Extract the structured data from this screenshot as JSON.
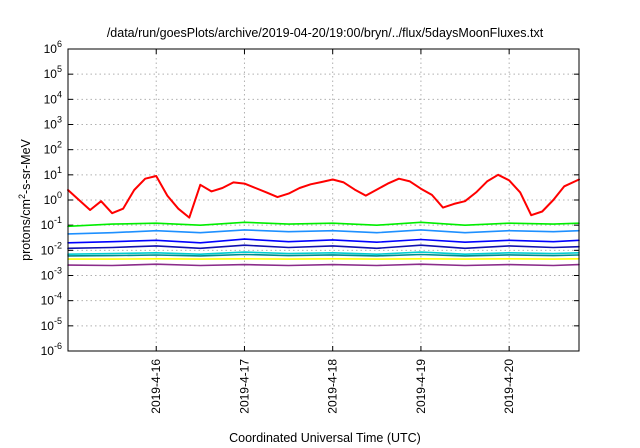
{
  "chart_data": {
    "type": "line",
    "title": "/data/run/goesPlots/archive/2019-04-20/19:00/bryn/../flux/5daysMoonFluxes.txt",
    "xlabel": "Coordinated Universal Time (UTC)",
    "ylabel": "protons/cm²-s-sr-MeV",
    "ylabel_parts": {
      "pre": "protons/cm",
      "sup": "2",
      "post": "-s-sr-MeV"
    },
    "y_scale": "log",
    "ylim": [
      1e-06,
      1000000.0
    ],
    "xlim": [
      "2019-04-15 00:00",
      "2019-04-20 19:00"
    ],
    "grid": true,
    "x_ticks": [
      {
        "x": "2019-04-16 00:00",
        "label": "2019-4-16"
      },
      {
        "x": "2019-04-17 00:00",
        "label": "2019-4-17"
      },
      {
        "x": "2019-04-18 00:00",
        "label": "2019-4-18"
      },
      {
        "x": "2019-04-19 00:00",
        "label": "2019-4-19"
      },
      {
        "x": "2019-04-20 00:00",
        "label": "2019-4-20"
      }
    ],
    "y_ticks": [
      {
        "value": 1e-06,
        "base": "10",
        "exp": "-6"
      },
      {
        "value": 1e-05,
        "base": "10",
        "exp": "-5"
      },
      {
        "value": 0.0001,
        "base": "10",
        "exp": "-4"
      },
      {
        "value": 0.001,
        "base": "10",
        "exp": "-3"
      },
      {
        "value": 0.01,
        "base": "10",
        "exp": "-2"
      },
      {
        "value": 0.1,
        "base": "10",
        "exp": "-1"
      },
      {
        "value": 1,
        "base": "10",
        "exp": "0"
      },
      {
        "value": 10,
        "base": "10",
        "exp": "1"
      },
      {
        "value": 100,
        "base": "10",
        "exp": "2"
      },
      {
        "value": 1000,
        "base": "10",
        "exp": "3"
      },
      {
        "value": 10000,
        "base": "10",
        "exp": "4"
      },
      {
        "value": 100000,
        "base": "10",
        "exp": "5"
      },
      {
        "value": 1000000,
        "base": "10",
        "exp": "6"
      }
    ],
    "series": [
      {
        "color": "#ff0000",
        "x": [
          "2019-04-15 00:00",
          "2019-04-15 03:00",
          "2019-04-15 06:00",
          "2019-04-15 09:00",
          "2019-04-15 12:00",
          "2019-04-15 15:00",
          "2019-04-15 18:00",
          "2019-04-15 21:00",
          "2019-04-16 00:00",
          "2019-04-16 03:00",
          "2019-04-16 06:00",
          "2019-04-16 09:00",
          "2019-04-16 12:00",
          "2019-04-16 15:00",
          "2019-04-16 18:00",
          "2019-04-16 21:00",
          "2019-04-17 00:00",
          "2019-04-17 03:00",
          "2019-04-17 06:00",
          "2019-04-17 09:00",
          "2019-04-17 12:00",
          "2019-04-17 15:00",
          "2019-04-17 18:00",
          "2019-04-17 21:00",
          "2019-04-18 00:00",
          "2019-04-18 03:00",
          "2019-04-18 06:00",
          "2019-04-18 09:00",
          "2019-04-18 12:00",
          "2019-04-18 15:00",
          "2019-04-18 18:00",
          "2019-04-18 21:00",
          "2019-04-19 00:00",
          "2019-04-19 03:00",
          "2019-04-19 06:00",
          "2019-04-19 09:00",
          "2019-04-19 12:00",
          "2019-04-19 15:00",
          "2019-04-19 18:00",
          "2019-04-19 21:00",
          "2019-04-20 00:00",
          "2019-04-20 03:00",
          "2019-04-20 06:00",
          "2019-04-20 09:00",
          "2019-04-20 12:00",
          "2019-04-20 15:00",
          "2019-04-20 19:00"
        ],
        "values": [
          2.5,
          1.0,
          0.4,
          0.9,
          0.3,
          0.45,
          2.5,
          7,
          9,
          1.5,
          0.45,
          0.2,
          4,
          2.2,
          3,
          5,
          4.5,
          3,
          2,
          1.3,
          1.8,
          3,
          4.2,
          5.2,
          6.5,
          5,
          2.6,
          1.5,
          2.6,
          4.5,
          7,
          5.5,
          2.8,
          1.6,
          0.5,
          0.7,
          0.9,
          2,
          5.5,
          10,
          6,
          2,
          0.25,
          0.35,
          1,
          3.5,
          6.5
        ]
      },
      {
        "color": "#00ee00",
        "x": [
          "2019-04-15 00:00",
          "2019-04-15 12:00",
          "2019-04-16 00:00",
          "2019-04-16 12:00",
          "2019-04-17 00:00",
          "2019-04-17 12:00",
          "2019-04-18 00:00",
          "2019-04-18 12:00",
          "2019-04-19 00:00",
          "2019-04-19 12:00",
          "2019-04-20 00:00",
          "2019-04-20 12:00",
          "2019-04-20 19:00"
        ],
        "values": [
          0.09,
          0.11,
          0.12,
          0.1,
          0.13,
          0.11,
          0.12,
          0.1,
          0.13,
          0.1,
          0.12,
          0.11,
          0.12
        ]
      },
      {
        "color": "#1e90ff",
        "x": [
          "2019-04-15 00:00",
          "2019-04-15 12:00",
          "2019-04-16 00:00",
          "2019-04-16 12:00",
          "2019-04-17 00:00",
          "2019-04-17 12:00",
          "2019-04-18 00:00",
          "2019-04-18 12:00",
          "2019-04-19 00:00",
          "2019-04-19 12:00",
          "2019-04-20 00:00",
          "2019-04-20 12:00",
          "2019-04-20 19:00"
        ],
        "values": [
          0.045,
          0.05,
          0.06,
          0.05,
          0.065,
          0.055,
          0.06,
          0.05,
          0.065,
          0.05,
          0.06,
          0.055,
          0.06
        ]
      },
      {
        "color": "#0000ff",
        "x": [
          "2019-04-15 00:00",
          "2019-04-15 12:00",
          "2019-04-16 00:00",
          "2019-04-16 12:00",
          "2019-04-17 00:00",
          "2019-04-17 12:00",
          "2019-04-18 00:00",
          "2019-04-18 12:00",
          "2019-04-19 00:00",
          "2019-04-19 12:00",
          "2019-04-20 00:00",
          "2019-04-20 12:00",
          "2019-04-20 19:00"
        ],
        "values": [
          0.02,
          0.022,
          0.025,
          0.02,
          0.028,
          0.022,
          0.026,
          0.021,
          0.027,
          0.021,
          0.025,
          0.022,
          0.025
        ]
      },
      {
        "color": "#1010b0",
        "x": [
          "2019-04-15 00:00",
          "2019-04-15 12:00",
          "2019-04-16 00:00",
          "2019-04-16 12:00",
          "2019-04-17 00:00",
          "2019-04-17 12:00",
          "2019-04-18 00:00",
          "2019-04-18 12:00",
          "2019-04-19 00:00",
          "2019-04-19 12:00",
          "2019-04-20 00:00",
          "2019-04-20 12:00",
          "2019-04-20 19:00"
        ],
        "values": [
          0.012,
          0.013,
          0.015,
          0.012,
          0.016,
          0.013,
          0.015,
          0.012,
          0.016,
          0.012,
          0.015,
          0.013,
          0.014
        ]
      },
      {
        "color": "#00ced1",
        "x": [
          "2019-04-15 00:00",
          "2019-04-15 12:00",
          "2019-04-16 00:00",
          "2019-04-16 12:00",
          "2019-04-17 00:00",
          "2019-04-17 12:00",
          "2019-04-18 00:00",
          "2019-04-18 12:00",
          "2019-04-19 00:00",
          "2019-04-19 12:00",
          "2019-04-20 00:00",
          "2019-04-20 12:00",
          "2019-04-20 19:00"
        ],
        "values": [
          0.007,
          0.0075,
          0.008,
          0.007,
          0.0085,
          0.0075,
          0.008,
          0.007,
          0.0085,
          0.007,
          0.008,
          0.0075,
          0.008
        ]
      },
      {
        "color": "#008b8b",
        "x": [
          "2019-04-15 00:00",
          "2019-04-15 12:00",
          "2019-04-16 00:00",
          "2019-04-16 12:00",
          "2019-04-17 00:00",
          "2019-04-17 12:00",
          "2019-04-18 00:00",
          "2019-04-18 12:00",
          "2019-04-19 00:00",
          "2019-04-19 12:00",
          "2019-04-20 00:00",
          "2019-04-20 12:00",
          "2019-04-20 19:00"
        ],
        "values": [
          0.006,
          0.0062,
          0.0065,
          0.006,
          0.0068,
          0.0062,
          0.0066,
          0.006,
          0.0068,
          0.006,
          0.0066,
          0.0062,
          0.0065
        ]
      },
      {
        "color": "#ffff00",
        "x": [
          "2019-04-15 00:00",
          "2019-04-15 12:00",
          "2019-04-16 00:00",
          "2019-04-16 12:00",
          "2019-04-17 00:00",
          "2019-04-17 12:00",
          "2019-04-18 00:00",
          "2019-04-18 12:00",
          "2019-04-19 00:00",
          "2019-04-19 12:00",
          "2019-04-20 00:00",
          "2019-04-20 12:00",
          "2019-04-20 19:00"
        ],
        "values": [
          0.0045,
          0.0045,
          0.0046,
          0.0045,
          0.0046,
          0.0045,
          0.0046,
          0.0045,
          0.0046,
          0.0045,
          0.0046,
          0.0045,
          0.0046
        ]
      },
      {
        "color": "#8b2c8b",
        "x": [
          "2019-04-15 00:00",
          "2019-04-15 12:00",
          "2019-04-16 00:00",
          "2019-04-16 12:00",
          "2019-04-17 00:00",
          "2019-04-17 12:00",
          "2019-04-18 00:00",
          "2019-04-18 12:00",
          "2019-04-19 00:00",
          "2019-04-19 12:00",
          "2019-04-20 00:00",
          "2019-04-20 12:00",
          "2019-04-20 19:00"
        ],
        "values": [
          0.0026,
          0.0025,
          0.0028,
          0.0025,
          0.0027,
          0.0025,
          0.0027,
          0.0025,
          0.0028,
          0.0025,
          0.0027,
          0.0025,
          0.0027
        ]
      }
    ]
  }
}
